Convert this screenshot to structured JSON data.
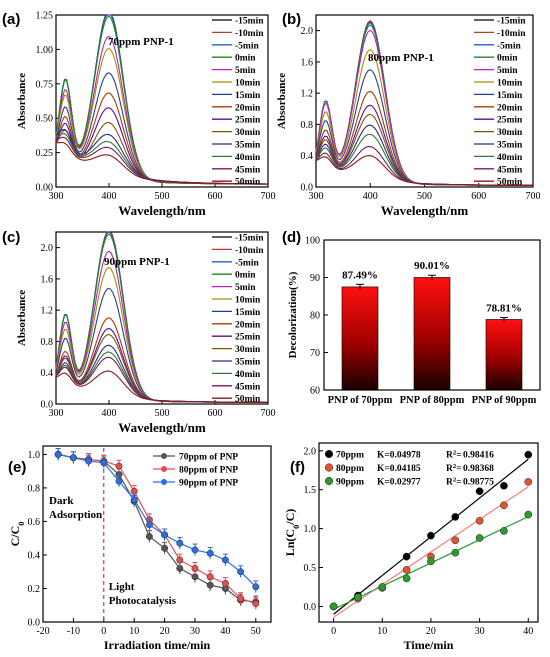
{
  "time_legend": [
    "-15min",
    "-10min",
    "-5min",
    "0min",
    "5min",
    "10min",
    "15min",
    "20min",
    "25min",
    "30min",
    "35min",
    "40min",
    "45min",
    "50min"
  ],
  "series_colors": [
    "#000000",
    "#c0392b",
    "#1f5fd1",
    "#1a8a1a",
    "#c020c0",
    "#a89000",
    "#1f3f9f",
    "#b03a00",
    "#5a0aa0",
    "#7a5a00",
    "#2a2a88",
    "#2e7d32",
    "#7d1a60",
    "#8a1a1a"
  ],
  "chart_data": [
    {
      "panel": "(a)",
      "type": "line",
      "title": "70ppm PNP-1",
      "xlabel": "Wavelength/nm",
      "ylabel": "Absorbance",
      "xlim": [
        300,
        700
      ],
      "ylim": [
        0,
        1.25
      ],
      "xticks": [
        300,
        400,
        500,
        600,
        700
      ],
      "yticks": [
        0.0,
        0.25,
        0.5,
        0.75,
        1.0,
        1.25
      ],
      "ytick_decimals": 2,
      "peaks": [
        1.22,
        1.21,
        1.2,
        1.17,
        1.02,
        0.93,
        0.75,
        0.6,
        0.49,
        0.38,
        0.27,
        0.22,
        0.18,
        0.13
      ],
      "shoulder_ratio": 0.52,
      "base_300": [
        0.33,
        0.32,
        0.31,
        0.29
      ],
      "legend": true
    },
    {
      "panel": "(b)",
      "type": "line",
      "title": "80ppm PNP-1",
      "xlabel": "Wavelength/nm",
      "ylabel": "Absorbance",
      "xlim": [
        300,
        700
      ],
      "ylim": [
        0,
        2.2
      ],
      "xticks": [
        300,
        400,
        500,
        600,
        700
      ],
      "yticks": [
        0.0,
        0.4,
        0.8,
        1.2,
        1.6,
        2.0
      ],
      "ytick_decimals": 1,
      "peaks": [
        2.06,
        2.05,
        2.03,
        2.0,
        1.93,
        1.68,
        1.42,
        1.14,
        0.96,
        0.84,
        0.7,
        0.58,
        0.42,
        0.3
      ],
      "shoulder_ratio": 0.46,
      "legend": true
    },
    {
      "panel": "(c)",
      "type": "line",
      "title": "90ppm PNP-1",
      "xlabel": "Wavelength/nm",
      "ylabel": "Absorbance",
      "xlim": [
        300,
        700
      ],
      "ylim": [
        0,
        2.2
      ],
      "xticks": [
        300,
        400,
        500,
        600,
        700
      ],
      "yticks": [
        0.0,
        0.4,
        0.8,
        1.2,
        1.6,
        2.0
      ],
      "ytick_decimals": 1,
      "peaks": [
        2.16,
        2.15,
        2.13,
        2.1,
        1.88,
        1.67,
        1.4,
        1.02,
        0.88,
        0.8,
        0.66,
        0.57,
        0.5,
        0.32
      ],
      "shoulder_ratio": 0.46,
      "legend": true
    },
    {
      "panel": "(d)",
      "type": "bar",
      "xlabel": "",
      "ylabel": "Decolorization(%)",
      "categories": [
        "PNP of 70ppm",
        "PNP of 80ppm",
        "PNP of 90ppm"
      ],
      "values": [
        87.49,
        90.01,
        78.81
      ],
      "errors": [
        0.7,
        0.6,
        0.5
      ],
      "data_labels": [
        "87.49%",
        "90.01%",
        "78.81%"
      ],
      "ylim": [
        60,
        100
      ],
      "yticks": [
        60,
        70,
        80,
        90,
        100
      ]
    },
    {
      "panel": "(e)",
      "type": "line",
      "xlabel": "Irradiation time/min",
      "ylabel": "C/C0",
      "xlim": [
        -20,
        55
      ],
      "ylim": [
        0,
        1.05
      ],
      "xticks": [
        -20,
        -10,
        0,
        10,
        20,
        30,
        40,
        50
      ],
      "yticks": [
        0.0,
        0.2,
        0.4,
        0.6,
        0.8,
        1.0
      ],
      "ytick_decimals": 1,
      "x": [
        -15,
        -10,
        -5,
        0,
        5,
        10,
        15,
        20,
        25,
        30,
        35,
        40,
        45,
        50
      ],
      "series": [
        {
          "name": "70ppm of PNP",
          "color": "#555555",
          "values": [
            1.0,
            0.98,
            0.97,
            0.96,
            0.88,
            0.72,
            0.51,
            0.44,
            0.32,
            0.27,
            0.22,
            0.2,
            0.13,
            0.12
          ]
        },
        {
          "name": "80ppm of PNP",
          "color": "#e05050",
          "values": [
            1.0,
            0.98,
            0.97,
            0.96,
            0.93,
            0.78,
            0.61,
            0.52,
            0.37,
            0.32,
            0.27,
            0.23,
            0.14,
            0.11
          ]
        },
        {
          "name": "90ppm of PNP",
          "color": "#2e6fe0",
          "values": [
            1.0,
            0.98,
            0.96,
            0.95,
            0.84,
            0.73,
            0.58,
            0.52,
            0.47,
            0.43,
            0.41,
            0.37,
            0.3,
            0.21
          ]
        }
      ],
      "error": 0.035,
      "annotations": [
        "Dark",
        "Adsorption",
        "Light",
        "Photocatalysis"
      ]
    },
    {
      "panel": "(f)",
      "type": "scatter",
      "xlabel": "Time/min",
      "ylabel": "Ln(C0/C)",
      "xlim": [
        -3,
        42
      ],
      "ylim": [
        -0.2,
        2.1
      ],
      "xticks": [
        0,
        10,
        20,
        30,
        40
      ],
      "yticks": [
        0.0,
        0.5,
        1.0,
        1.5,
        2.0
      ],
      "ytick_decimals": 1,
      "x": [
        0,
        5,
        10,
        15,
        20,
        25,
        30,
        35,
        40
      ],
      "series": [
        {
          "name": "70ppm",
          "color": "#000000",
          "fit_color": "#000000",
          "k_label": "K=0.04978",
          "r2_label": "0.98416",
          "values": [
            0.0,
            0.14,
            0.24,
            0.64,
            0.91,
            1.15,
            1.48,
            1.55,
            1.95
          ]
        },
        {
          "name": "80ppm",
          "color": "#e05530",
          "fit_color": "#f08080",
          "k_label": "K=0.04185",
          "r2_label": "0.98368",
          "values": [
            0.0,
            0.1,
            0.24,
            0.47,
            0.64,
            0.85,
            1.1,
            1.3,
            1.6
          ]
        },
        {
          "name": "90ppm",
          "color": "#2e9a2e",
          "fit_color": "#2e9a2e",
          "k_label": "K=0.02977",
          "r2_label": "0.98775",
          "values": [
            0.0,
            0.12,
            0.25,
            0.36,
            0.58,
            0.69,
            0.88,
            0.97,
            1.18
          ]
        }
      ]
    }
  ]
}
